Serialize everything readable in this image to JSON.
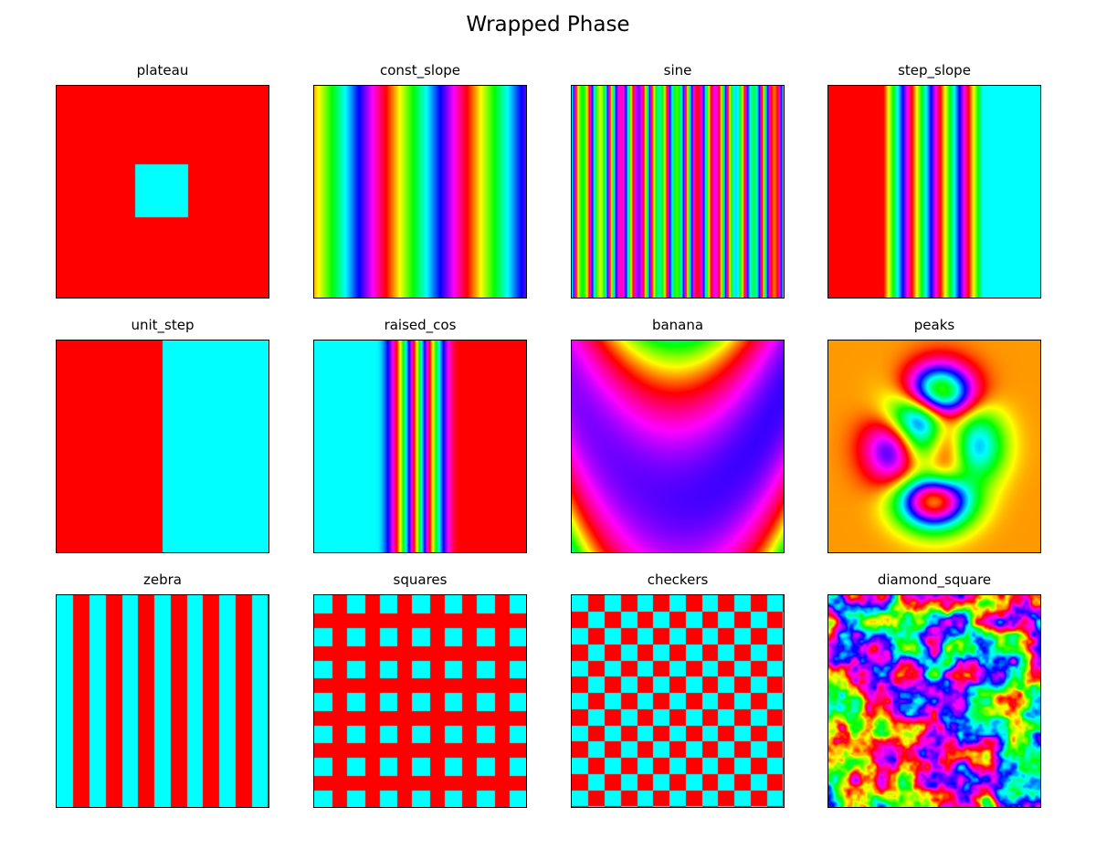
{
  "title": "Wrapped Phase",
  "chart_data": {
    "type": "heatmap",
    "colormap": "hsv",
    "title": "Wrapped Phase",
    "grid": false,
    "axes_ticks": false,
    "panels": [
      {
        "title": "plateau",
        "pattern": "plateau"
      },
      {
        "title": "const_slope",
        "pattern": "const_slope"
      },
      {
        "title": "sine",
        "pattern": "sine"
      },
      {
        "title": "step_slope",
        "pattern": "step_slope"
      },
      {
        "title": "unit_step",
        "pattern": "unit_step"
      },
      {
        "title": "raised_cos",
        "pattern": "raised_cos"
      },
      {
        "title": "banana",
        "pattern": "banana"
      },
      {
        "title": "peaks",
        "pattern": "peaks"
      },
      {
        "title": "zebra",
        "pattern": "zebra"
      },
      {
        "title": "squares",
        "pattern": "squares"
      },
      {
        "title": "checkers",
        "pattern": "checkers"
      },
      {
        "title": "diamond_square",
        "pattern": "diamond_square"
      }
    ]
  }
}
